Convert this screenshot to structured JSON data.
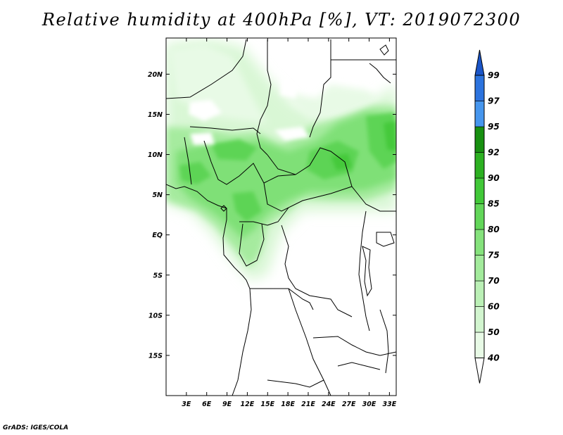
{
  "title": "Relative humidity at 400hPa [%], VT: 2019072300",
  "credit": "GrADS: IGES/COLA",
  "map": {
    "lon_range": [
      0,
      34
    ],
    "lat_range": [
      -20,
      24.5
    ],
    "lat_ticks": [
      {
        "value": 20,
        "label": "20N"
      },
      {
        "value": 15,
        "label": "15N"
      },
      {
        "value": 10,
        "label": "10N"
      },
      {
        "value": 5,
        "label": "5N"
      },
      {
        "value": 0,
        "label": "EQ"
      },
      {
        "value": -5,
        "label": "5S"
      },
      {
        "value": -10,
        "label": "10S"
      },
      {
        "value": -15,
        "label": "15S"
      }
    ],
    "lon_ticks": [
      {
        "value": 3,
        "label": "3E"
      },
      {
        "value": 6,
        "label": "6E"
      },
      {
        "value": 9,
        "label": "9E"
      },
      {
        "value": 12,
        "label": "12E"
      },
      {
        "value": 15,
        "label": "15E"
      },
      {
        "value": 18,
        "label": "18E"
      },
      {
        "value": 21,
        "label": "21E"
      },
      {
        "value": 24,
        "label": "24E"
      },
      {
        "value": 27,
        "label": "27E"
      },
      {
        "value": 30,
        "label": "30E"
      },
      {
        "value": 33,
        "label": "33E"
      }
    ]
  },
  "colorbar": {
    "levels": [
      "40",
      "50",
      "60",
      "70",
      "75",
      "80",
      "85",
      "90",
      "92",
      "95",
      "97",
      "99"
    ],
    "colors": [
      "#ffffff",
      "#e8fae6",
      "#d2f5cf",
      "#bbf0b6",
      "#a3eb9c",
      "#85e27c",
      "#62d659",
      "#41c838",
      "#2cb021",
      "#179010",
      "#4696ee",
      "#2c73de",
      "#1a55c8"
    ]
  },
  "colors": {
    "land_border": "#000000",
    "frame": "#000000"
  }
}
